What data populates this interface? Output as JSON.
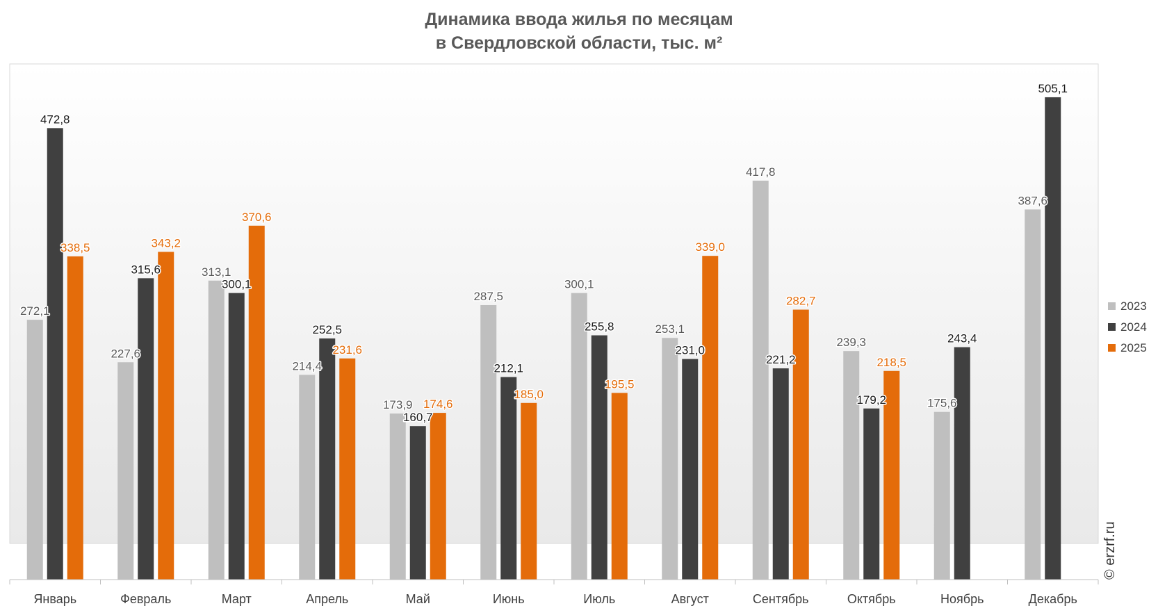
{
  "chart_data": {
    "type": "bar",
    "title_lines": [
      "Динамика ввода жилья по месяцам",
      "в Свердловской области, тыс. м²"
    ],
    "categories": [
      "Январь",
      "Февраль",
      "Март",
      "Апрель",
      "Май",
      "Июнь",
      "Июль",
      "Август",
      "Сентябрь",
      "Октябрь",
      "Ноябрь",
      "Декабрь"
    ],
    "series": [
      {
        "name": "2023",
        "color": "#BFBFBF",
        "label_color": "#595959",
        "values": [
          272.1,
          227.6,
          313.1,
          214.4,
          173.9,
          287.5,
          300.1,
          253.1,
          417.8,
          239.3,
          175.6,
          387.6
        ],
        "labels": [
          "272,1",
          "227,6",
          "313,1",
          "214,4",
          "173,9",
          "287,5",
          "300,1",
          "253,1",
          "417,8",
          "239,3",
          "175,6",
          "387,6"
        ]
      },
      {
        "name": "2024",
        "color": "#404040",
        "label_color": "#1a1a1a",
        "values": [
          472.8,
          315.6,
          300.1,
          252.5,
          160.7,
          212.1,
          255.8,
          231.0,
          221.2,
          179.2,
          243.4,
          505.1
        ],
        "labels": [
          "472,8",
          "315,6",
          "300,1",
          "252,5",
          "160,7",
          "212,1",
          "255,8",
          "231,0",
          "221,2",
          "179,2",
          "243,4",
          "505,1"
        ]
      },
      {
        "name": "2025",
        "color": "#E46C0A",
        "label_color": "#E46C0A",
        "values": [
          338.5,
          343.2,
          370.6,
          231.6,
          174.6,
          185.0,
          195.5,
          339.0,
          282.7,
          218.5,
          null,
          null
        ],
        "labels": [
          "338,5",
          "343,2",
          "370,6",
          "231,6",
          "174,6",
          "185,0",
          "195,5",
          "339,0",
          "282,7",
          "218,5",
          "",
          ""
        ]
      }
    ],
    "ylim": [
      0,
      540
    ],
    "legend_position": "right",
    "grid": false,
    "watermark": "© erzrf.ru"
  }
}
